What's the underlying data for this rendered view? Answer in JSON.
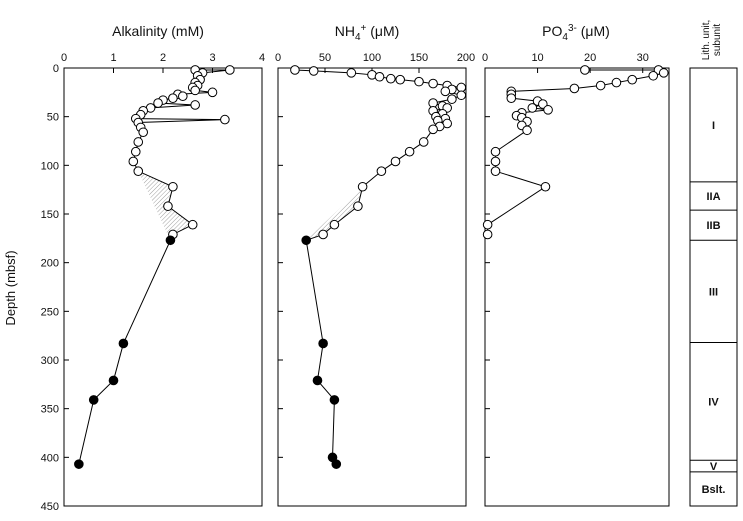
{
  "chart_data": [
    {
      "type": "scatter",
      "title": "Alkalinity (mM)",
      "xlim": [
        0,
        4
      ],
      "xticks": [
        0,
        1,
        2,
        3,
        4
      ],
      "ylim": [
        0,
        450
      ],
      "yticks": [
        0,
        50,
        100,
        150,
        200,
        250,
        300,
        350,
        400,
        450
      ],
      "ylabel": "Depth (mbsf)",
      "series": [
        {
          "style": "open",
          "points": [
            [
              2.65,
              2
            ],
            [
              3.35,
              2
            ],
            [
              2.8,
              5
            ],
            [
              2.7,
              8
            ],
            [
              2.75,
              12
            ],
            [
              2.65,
              15
            ],
            [
              2.7,
              18
            ],
            [
              2.6,
              20
            ],
            [
              2.65,
              23
            ],
            [
              3.0,
              25
            ],
            [
              2.3,
              27
            ],
            [
              2.4,
              29
            ],
            [
              2.2,
              31
            ],
            [
              2.0,
              33
            ],
            [
              1.9,
              36
            ],
            [
              2.65,
              38
            ],
            [
              1.75,
              41
            ],
            [
              1.6,
              44
            ],
            [
              1.55,
              48
            ],
            [
              1.45,
              52
            ],
            [
              3.25,
              53
            ],
            [
              1.5,
              56
            ],
            [
              1.55,
              61
            ],
            [
              1.6,
              66
            ],
            [
              1.5,
              76
            ],
            [
              1.45,
              86
            ],
            [
              1.4,
              96
            ],
            [
              1.5,
              106
            ],
            [
              2.2,
              122
            ],
            [
              2.1,
              142
            ],
            [
              2.6,
              161
            ],
            [
              2.2,
              171
            ]
          ]
        },
        {
          "style": "filled",
          "points": [
            [
              2.15,
              177
            ],
            [
              1.2,
              283
            ],
            [
              1.0,
              321
            ],
            [
              0.6,
              341
            ],
            [
              0.3,
              407
            ]
          ]
        }
      ],
      "shaded_region": [
        [
          1.5,
          106
        ],
        [
          2.2,
          122
        ],
        [
          2.1,
          142
        ],
        [
          2.6,
          161
        ],
        [
          2.2,
          171
        ],
        [
          2.15,
          177
        ]
      ]
    },
    {
      "type": "scatter",
      "title": "NH4+ (μM)",
      "xlim": [
        0,
        200
      ],
      "xticks": [
        0,
        50,
        100,
        150,
        200
      ],
      "ylim": [
        0,
        450
      ],
      "series": [
        {
          "style": "open",
          "points": [
            [
              18,
              2
            ],
            [
              38,
              3
            ],
            [
              78,
              5
            ],
            [
              100,
              7
            ],
            [
              108,
              9
            ],
            [
              120,
              11
            ],
            [
              130,
              12
            ],
            [
              150,
              14
            ],
            [
              165,
              16
            ],
            [
              180,
              18
            ],
            [
              195,
              20
            ],
            [
              185,
              22
            ],
            [
              178,
              24
            ],
            [
              195,
              28
            ],
            [
              185,
              32
            ],
            [
              165,
              36
            ],
            [
              175,
              39
            ],
            [
              180,
              41
            ],
            [
              165,
              44
            ],
            [
              175,
              47
            ],
            [
              168,
              50
            ],
            [
              178,
              52
            ],
            [
              170,
              54
            ],
            [
              180,
              57
            ],
            [
              172,
              60
            ],
            [
              165,
              63
            ],
            [
              155,
              76
            ],
            [
              140,
              86
            ],
            [
              125,
              96
            ],
            [
              110,
              106
            ],
            [
              90,
              122
            ],
            [
              85,
              142
            ],
            [
              60,
              161
            ],
            [
              48,
              171
            ]
          ]
        },
        {
          "style": "filled",
          "points": [
            [
              30,
              177
            ],
            [
              48,
              283
            ],
            [
              42,
              321
            ],
            [
              60,
              341
            ],
            [
              58,
              400
            ],
            [
              62,
              407
            ]
          ]
        }
      ],
      "shaded_region": [
        [
          90,
          122
        ],
        [
          85,
          142
        ],
        [
          60,
          161
        ],
        [
          48,
          171
        ],
        [
          30,
          177
        ]
      ]
    },
    {
      "type": "scatter",
      "title": "PO43- (μM)",
      "xlim": [
        0,
        35
      ],
      "xticks": [
        0,
        10,
        20,
        30
      ],
      "ylim": [
        0,
        450
      ],
      "series": [
        {
          "style": "open",
          "points": [
            [
              19,
              2
            ],
            [
              33,
              2
            ],
            [
              34,
              5
            ],
            [
              32,
              8
            ],
            [
              28,
              12
            ],
            [
              25,
              15
            ],
            [
              22,
              18
            ],
            [
              17,
              21
            ],
            [
              5,
              24
            ],
            [
              5,
              27
            ],
            [
              5,
              31
            ],
            [
              10,
              34
            ],
            [
              11,
              37
            ],
            [
              9,
              41
            ],
            [
              12,
              43
            ],
            [
              7,
              46
            ],
            [
              6,
              49
            ],
            [
              7,
              51
            ],
            [
              8,
              55
            ],
            [
              7,
              59
            ],
            [
              8,
              64
            ],
            [
              2,
              86
            ],
            [
              2,
              96
            ],
            [
              2,
              106
            ],
            [
              11.5,
              122
            ],
            [
              0.5,
              161
            ],
            [
              0.5,
              171
            ]
          ]
        }
      ]
    }
  ],
  "panels": [
    {
      "title_base": "Alkalinity (mM)",
      "title_sup": "",
      "title_rest": "",
      "ticks": [
        "0",
        "1",
        "2",
        "3",
        "4"
      ]
    },
    {
      "title_base": "NH",
      "title_sub": "4",
      "title_sup": "+",
      "title_rest": " (μM)",
      "ticks": [
        "0",
        "50",
        "100",
        "150",
        "200"
      ]
    },
    {
      "title_base": "PO",
      "title_sub": "4",
      "title_sup": "3-",
      "title_rest": " (μM)",
      "ticks": [
        "0",
        "10",
        "20",
        "30"
      ]
    }
  ],
  "yaxis": {
    "label": "Depth (mbsf)",
    "ticks": [
      "0",
      "50",
      "100",
      "150",
      "200",
      "250",
      "300",
      "350",
      "400",
      "450"
    ]
  },
  "lith_column": {
    "header": [
      "Lith. unit,",
      "subunit"
    ],
    "units": [
      {
        "label": "I",
        "top": 0,
        "bottom": 117
      },
      {
        "label": "IIA",
        "top": 117,
        "bottom": 146
      },
      {
        "label": "IIB",
        "top": 146,
        "bottom": 177
      },
      {
        "label": "III",
        "top": 177,
        "bottom": 282
      },
      {
        "label": "IV",
        "top": 282,
        "bottom": 403
      },
      {
        "label": "V",
        "top": 403,
        "bottom": 415
      },
      {
        "label": "Bslt.",
        "top": 415,
        "bottom": 450
      }
    ]
  }
}
